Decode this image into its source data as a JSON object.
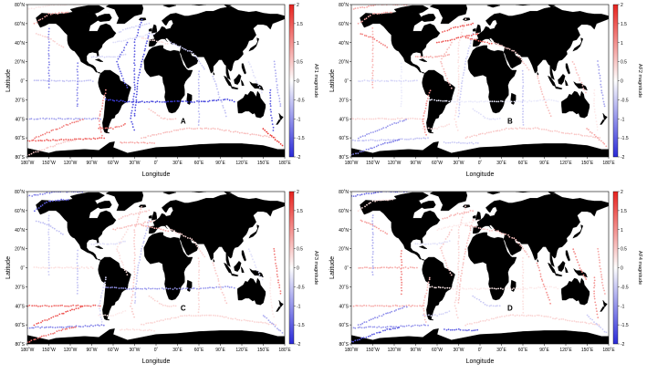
{
  "figure": {
    "xlabel": "Longitude",
    "ylabel": "Latitude",
    "lat_ticks": [
      "80˚N",
      "60˚N",
      "40˚N",
      "20˚N",
      "0˚",
      "20˚S",
      "40˚S",
      "60˚S",
      "80˚S"
    ],
    "lon_ticks": [
      "180˚W",
      "150˚W",
      "120˚W",
      "90˚W",
      "60˚W",
      "30˚W",
      "0˚",
      "30˚E",
      "60˚E",
      "90˚E",
      "120˚E",
      "150˚E",
      "180˚E"
    ],
    "colorbar_ticks": [
      "2",
      "1.5",
      "1",
      "0.5",
      "0",
      "-0.5",
      "-1",
      "-1.5",
      "-2"
    ],
    "colorbar_range": [
      -2,
      2
    ],
    "colors": {
      "positive": "#e8231f",
      "negative": "#2a2ad8",
      "zero": "#ffffff",
      "land": "#000000"
    }
  },
  "panels": [
    {
      "letter": "A",
      "colorbar_label": "AF1 magnitude"
    },
    {
      "letter": "B",
      "colorbar_label": "AF2 magnitude"
    },
    {
      "letter": "C",
      "colorbar_label": "AF3 magnitude"
    },
    {
      "letter": "D",
      "colorbar_label": "AF4 magnitude"
    }
  ]
}
